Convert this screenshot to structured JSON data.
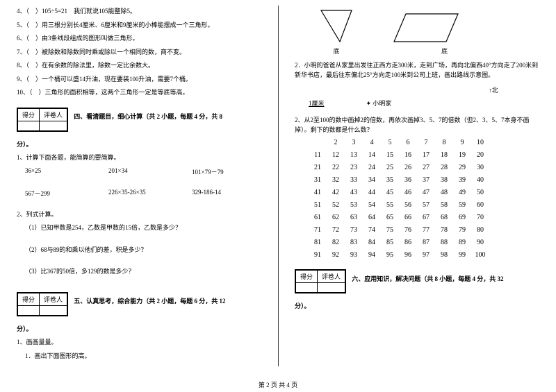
{
  "left": {
    "tf": [
      "4、（　）105÷5=21　我们就说105能整除5。",
      "5、（　）用三根分别长4厘米、6厘米和9厘米的小棒能摆成一个三角形。",
      "6、（　）由3条线段组成的图形叫做三角形。",
      "7、（　）被除数和除数同时乘或除以一个相同的数，商不变。",
      "8、（　）在有余数的除法里，除数一定比余数大。",
      "9、（　）一个桶可以盛14升油，现在要装100升油，需要7个桶。",
      "10、（　）三角形的面积相等，这两个三角形一定是等底等高。"
    ],
    "scorebox": {
      "c1": "得分",
      "c2": "评卷人"
    },
    "sec4_title": "四、看清题目，细心计算（共 2 小题，每题 4 分，共 8",
    "sec4_tail": "分）。",
    "calc_intro": "1、计算下面各题，能简算的要简算。",
    "calc_r1": [
      "36×25",
      "201×34",
      "101×79－79"
    ],
    "calc_r2": [
      "567－299",
      "226×35-26×35",
      "329-186-14"
    ],
    "list_intro": "2、列式计算。",
    "list1": "（1）已知甲数是254，乙数是甲数的15倍，乙数是多少？",
    "list2": "（2）68与89的和乘以他们的差，积是多少？",
    "list3": "（3）比367的50倍，多129的数是多少？",
    "sec5_title": "五、认真思考，综合能力（共 2 小题，每题 6 分，共 12",
    "sec5_tail": "分）。",
    "q5_1": "1、画画量量。",
    "q5_1a": "1．画出下面图形的高。"
  },
  "right": {
    "shape_label1": "底",
    "shape_label2": "底",
    "q5_2": "2．小明的爸爸从家里出发往正西方走300米，走到广场，再向北偏西40°方向走了200米到新华书店，最后往东偏北25°方向走100米到公司上班，画出路线示意图。",
    "compass": "↑北",
    "map_l": "1厘米",
    "map_r": "✦ 小明家",
    "q2": "2、从2至100的数中画掉2的倍数，再依次画掉3、5、7的倍数（但2、3、5、7本身不画掉）。剩下的数都是什么数？",
    "grid": [
      [
        "2",
        "3",
        "4",
        "5",
        "6",
        "7",
        "8",
        "9",
        "10"
      ],
      [
        "11",
        "12",
        "13",
        "14",
        "15",
        "16",
        "17",
        "18",
        "19",
        "20"
      ],
      [
        "21",
        "22",
        "23",
        "24",
        "25",
        "26",
        "27",
        "28",
        "29",
        "30"
      ],
      [
        "31",
        "32",
        "33",
        "34",
        "35",
        "36",
        "37",
        "38",
        "39",
        "40"
      ],
      [
        "41",
        "42",
        "43",
        "44",
        "45",
        "46",
        "47",
        "48",
        "49",
        "50"
      ],
      [
        "51",
        "52",
        "53",
        "54",
        "55",
        "56",
        "57",
        "58",
        "59",
        "60"
      ],
      [
        "61",
        "62",
        "63",
        "64",
        "65",
        "66",
        "67",
        "68",
        "69",
        "70"
      ],
      [
        "71",
        "72",
        "73",
        "74",
        "75",
        "76",
        "77",
        "78",
        "79",
        "80"
      ],
      [
        "81",
        "82",
        "83",
        "84",
        "85",
        "86",
        "87",
        "88",
        "89",
        "90"
      ],
      [
        "91",
        "92",
        "93",
        "94",
        "95",
        "96",
        "97",
        "98",
        "99",
        "100"
      ]
    ],
    "scorebox": {
      "c1": "得分",
      "c2": "评卷人"
    },
    "sec6_title": "六、应用知识，解决问题（共 8 小题，每题 4 分，共 32",
    "sec6_tail": "分）。"
  },
  "footer": "第 2 页 共 4 页",
  "style": {
    "triangle_stroke": "#000000",
    "rhombus_stroke": "#000000",
    "grid_fontsize": 10
  }
}
